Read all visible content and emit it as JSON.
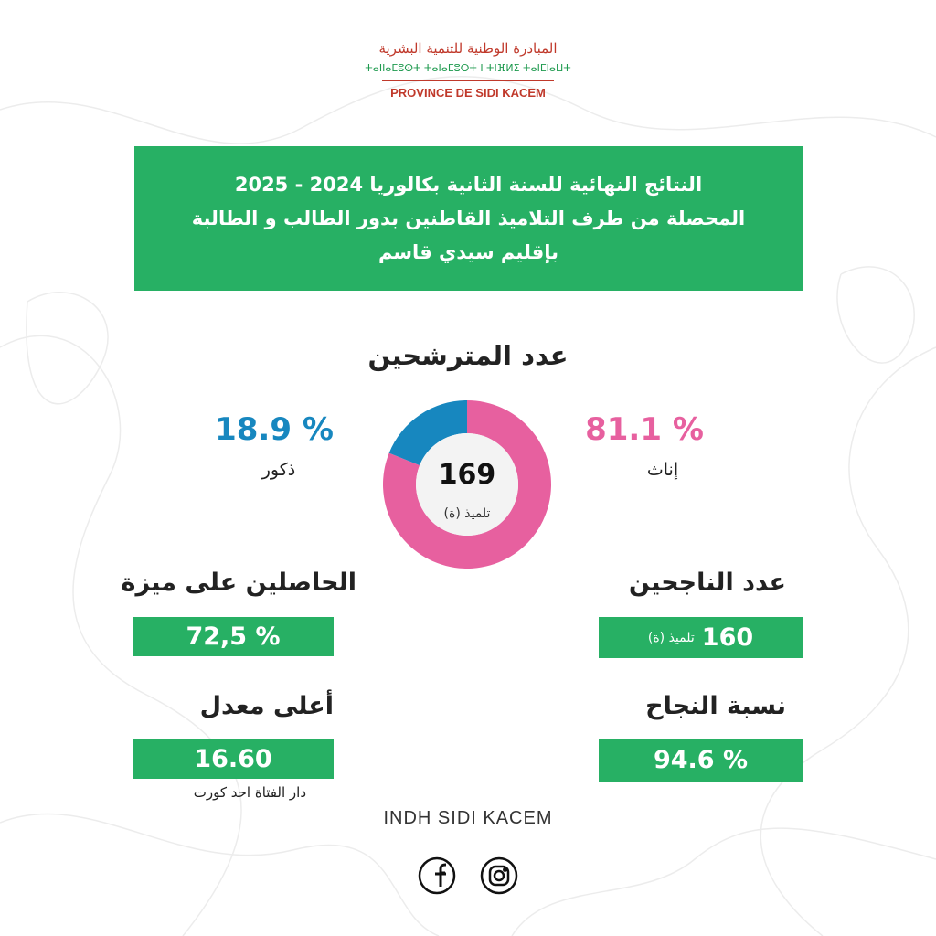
{
  "header": {
    "arabic": "المبادرة الوطنية للتنمية البشرية",
    "tifinagh": "ⵜⴰⵏⵏⴰⵎⵓⵙⵜ ⵜⴰⵏⴰⵎⵓⵔⵜ ⵏ ⵜⵏⴼⵍⵉ ⵜⴰⵏⵎⵏⴰⵡⵜ",
    "province": "PROVINCE DE SIDI KACEM"
  },
  "title": {
    "lines": [
      "النتائج النهائية للسنة الثانية بكالوريا 2024 - 2025",
      "المحصلة من طرف التلاميذ القاطنين بدور الطالب و الطالبة",
      "بإقليم سيدي قاسم"
    ]
  },
  "chart_data": {
    "type": "pie",
    "title": "عدد المترشحين",
    "categories": [
      "إناث",
      "ذكور"
    ],
    "values": [
      81.1,
      18.9
    ],
    "value_labels": [
      "81.1 %",
      "18.9 %"
    ],
    "colors": [
      "#e7609f",
      "#1787bf"
    ],
    "total": 169,
    "total_unit": "تلميذ (ة)"
  },
  "stats": {
    "passed": {
      "label": "عدد الناجحين",
      "value": 160,
      "unit": "تلميذ (ة)"
    },
    "success_rate": {
      "label": "نسبة النجاح",
      "value": {
        "value": 94.6,
        "label": "94.6 %"
      }
    },
    "mention": {
      "label": "الحاصلين على ميزة",
      "value": {
        "value": 72.5,
        "label": "72,5 %"
      }
    },
    "top_average": {
      "label": "أعلى معدل",
      "value": {
        "value": 16.6,
        "label": "16.60"
      },
      "note": "دار الفتاة احد كورت"
    }
  },
  "footer": {
    "text": "INDH SIDI KACEM"
  }
}
